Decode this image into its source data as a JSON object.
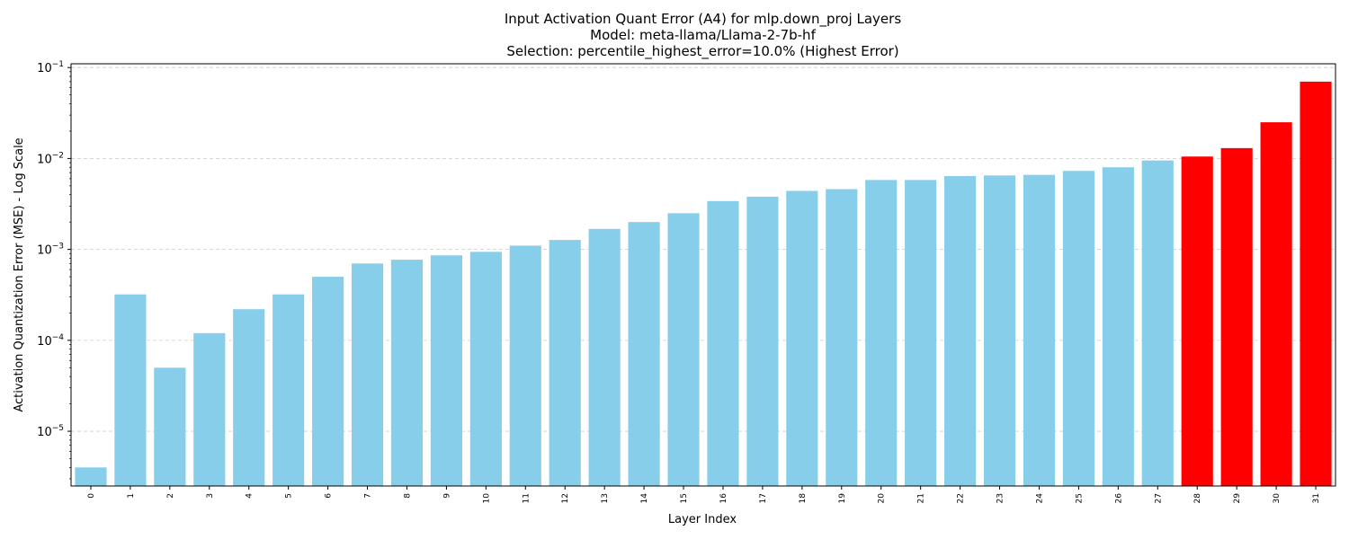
{
  "chart_data": {
    "type": "bar",
    "title": "Input Activation Quant Error (A4) for mlp.down_proj Layers",
    "subtitle_model": "Model: meta-llama/Llama-2-7b-hf",
    "subtitle_selection": "Selection: percentile_highest_error=10.0% (Highest Error)",
    "xlabel": "Layer Index",
    "ylabel": "Activation Quantization Error (MSE) - Log Scale",
    "yscale": "log",
    "ylim": [
      2.5e-06,
      0.11
    ],
    "yticks": [
      {
        "value": 1e-05,
        "mantissa": "10",
        "exp": "−5"
      },
      {
        "value": 0.0001,
        "mantissa": "10",
        "exp": "−4"
      },
      {
        "value": 0.001,
        "mantissa": "10",
        "exp": "−3"
      },
      {
        "value": 0.01,
        "mantissa": "10",
        "exp": "−2"
      },
      {
        "value": 0.1,
        "mantissa": "10",
        "exp": "−1"
      }
    ],
    "grid": "y-dashed",
    "categories": [
      "0",
      "1",
      "2",
      "3",
      "4",
      "5",
      "6",
      "7",
      "8",
      "9",
      "10",
      "11",
      "12",
      "13",
      "14",
      "15",
      "16",
      "17",
      "18",
      "19",
      "20",
      "21",
      "22",
      "23",
      "24",
      "25",
      "26",
      "27",
      "28",
      "29",
      "30",
      "31"
    ],
    "values": [
      4e-06,
      0.00032,
      5e-05,
      0.00012,
      0.00022,
      0.00032,
      0.0005,
      0.0007,
      0.00077,
      0.00086,
      0.00094,
      0.0011,
      0.00127,
      0.00168,
      0.002,
      0.0025,
      0.0034,
      0.0038,
      0.0044,
      0.0046,
      0.0058,
      0.0058,
      0.0064,
      0.0065,
      0.0066,
      0.0073,
      0.008,
      0.0095,
      0.0105,
      0.013,
      0.025,
      0.07
    ],
    "highlighted": [
      28,
      29,
      30,
      31
    ],
    "colors": {
      "normal": "#87ceeb",
      "highlight": "#ff0000",
      "grid": "#cccccc",
      "axis": "#000000"
    }
  }
}
